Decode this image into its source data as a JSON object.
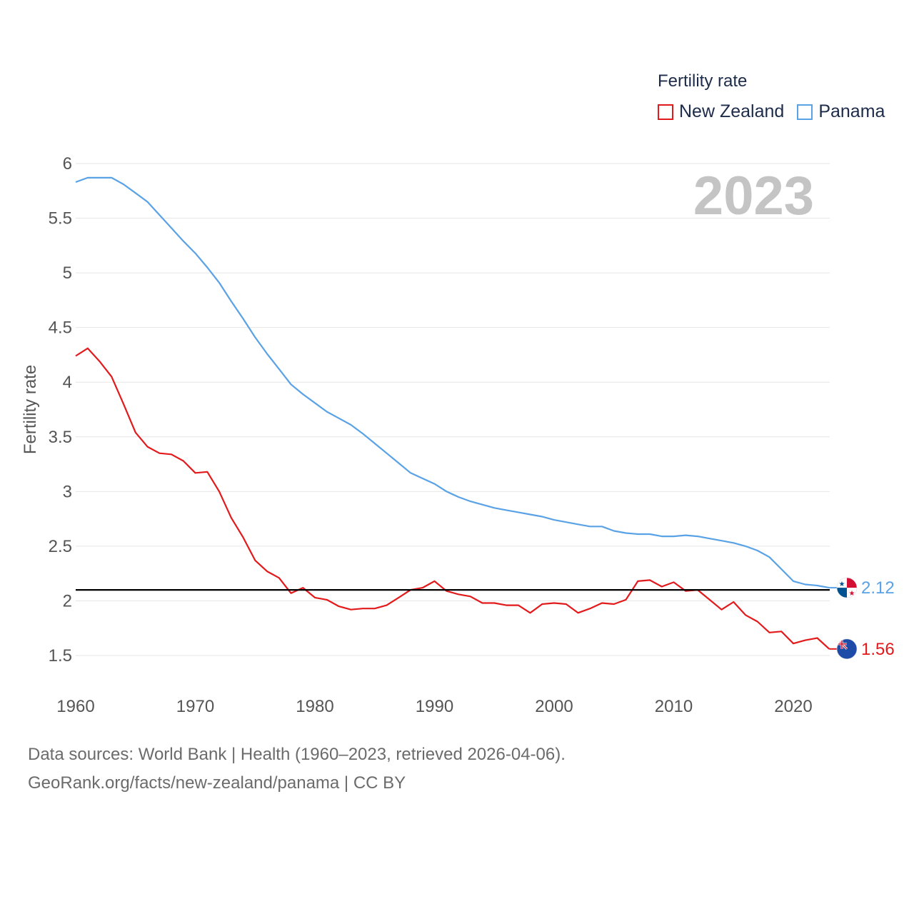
{
  "legend": {
    "title": "Fertility rate",
    "items": [
      {
        "label": "New Zealand",
        "color": "#e31a1c"
      },
      {
        "label": "Panama",
        "color": "#5aa2e6"
      }
    ]
  },
  "footer": {
    "line1": "Data sources: World Bank | Health (1960–2023, retrieved 2026-04-06).",
    "line2": "GeoRank.org/facts/new-zealand/panama | CC BY"
  },
  "chart_data": {
    "type": "line",
    "title": "Fertility rate",
    "year_label": "2023",
    "xlabel": "",
    "ylabel": "Fertility rate",
    "xlim": [
      1960,
      2024
    ],
    "ylim": [
      1.45,
      6.05
    ],
    "xticks": [
      1960,
      1970,
      1980,
      1990,
      2000,
      2010,
      2020
    ],
    "yticks": [
      1.5,
      2,
      2.5,
      3,
      3.5,
      4,
      4.5,
      5,
      5.5,
      6
    ],
    "grid": true,
    "legend_position": "top-right",
    "reference_line": {
      "y": 2.1,
      "color": "#000000"
    },
    "x": [
      1960,
      1961,
      1962,
      1963,
      1964,
      1965,
      1966,
      1967,
      1968,
      1969,
      1970,
      1971,
      1972,
      1973,
      1974,
      1975,
      1976,
      1977,
      1978,
      1979,
      1980,
      1981,
      1982,
      1983,
      1984,
      1985,
      1986,
      1987,
      1988,
      1989,
      1990,
      1991,
      1992,
      1993,
      1994,
      1995,
      1996,
      1997,
      1998,
      1999,
      2000,
      2001,
      2002,
      2003,
      2004,
      2005,
      2006,
      2007,
      2008,
      2009,
      2010,
      2011,
      2012,
      2013,
      2014,
      2015,
      2016,
      2017,
      2018,
      2019,
      2020,
      2021,
      2022,
      2023
    ],
    "series": [
      {
        "name": "New Zealand",
        "color": "#e31a1c",
        "end_label": "1.56",
        "values": [
          4.24,
          4.31,
          4.19,
          4.05,
          3.8,
          3.54,
          3.41,
          3.35,
          3.34,
          3.28,
          3.17,
          3.18,
          3.0,
          2.76,
          2.58,
          2.37,
          2.27,
          2.21,
          2.07,
          2.12,
          2.03,
          2.01,
          1.95,
          1.92,
          1.93,
          1.93,
          1.96,
          2.03,
          2.1,
          2.12,
          2.18,
          2.09,
          2.06,
          2.04,
          1.98,
          1.98,
          1.96,
          1.96,
          1.89,
          1.97,
          1.98,
          1.97,
          1.89,
          1.93,
          1.98,
          1.97,
          2.01,
          2.18,
          2.19,
          2.13,
          2.17,
          2.09,
          2.1,
          2.01,
          1.92,
          1.99,
          1.87,
          1.81,
          1.71,
          1.72,
          1.61,
          1.64,
          1.66,
          1.56
        ]
      },
      {
        "name": "Panama",
        "color": "#5aa2e6",
        "end_label": "2.12",
        "values": [
          5.83,
          5.87,
          5.87,
          5.87,
          5.81,
          5.73,
          5.65,
          5.53,
          5.41,
          5.29,
          5.18,
          5.05,
          4.91,
          4.74,
          4.58,
          4.41,
          4.26,
          4.12,
          3.98,
          3.89,
          3.81,
          3.73,
          3.67,
          3.61,
          3.53,
          3.44,
          3.35,
          3.26,
          3.17,
          3.12,
          3.07,
          3.0,
          2.95,
          2.91,
          2.88,
          2.85,
          2.83,
          2.81,
          2.79,
          2.77,
          2.74,
          2.72,
          2.7,
          2.68,
          2.68,
          2.64,
          2.62,
          2.61,
          2.61,
          2.59,
          2.59,
          2.6,
          2.59,
          2.57,
          2.55,
          2.53,
          2.5,
          2.46,
          2.4,
          2.29,
          2.18,
          2.15,
          2.14,
          2.12
        ]
      }
    ]
  }
}
